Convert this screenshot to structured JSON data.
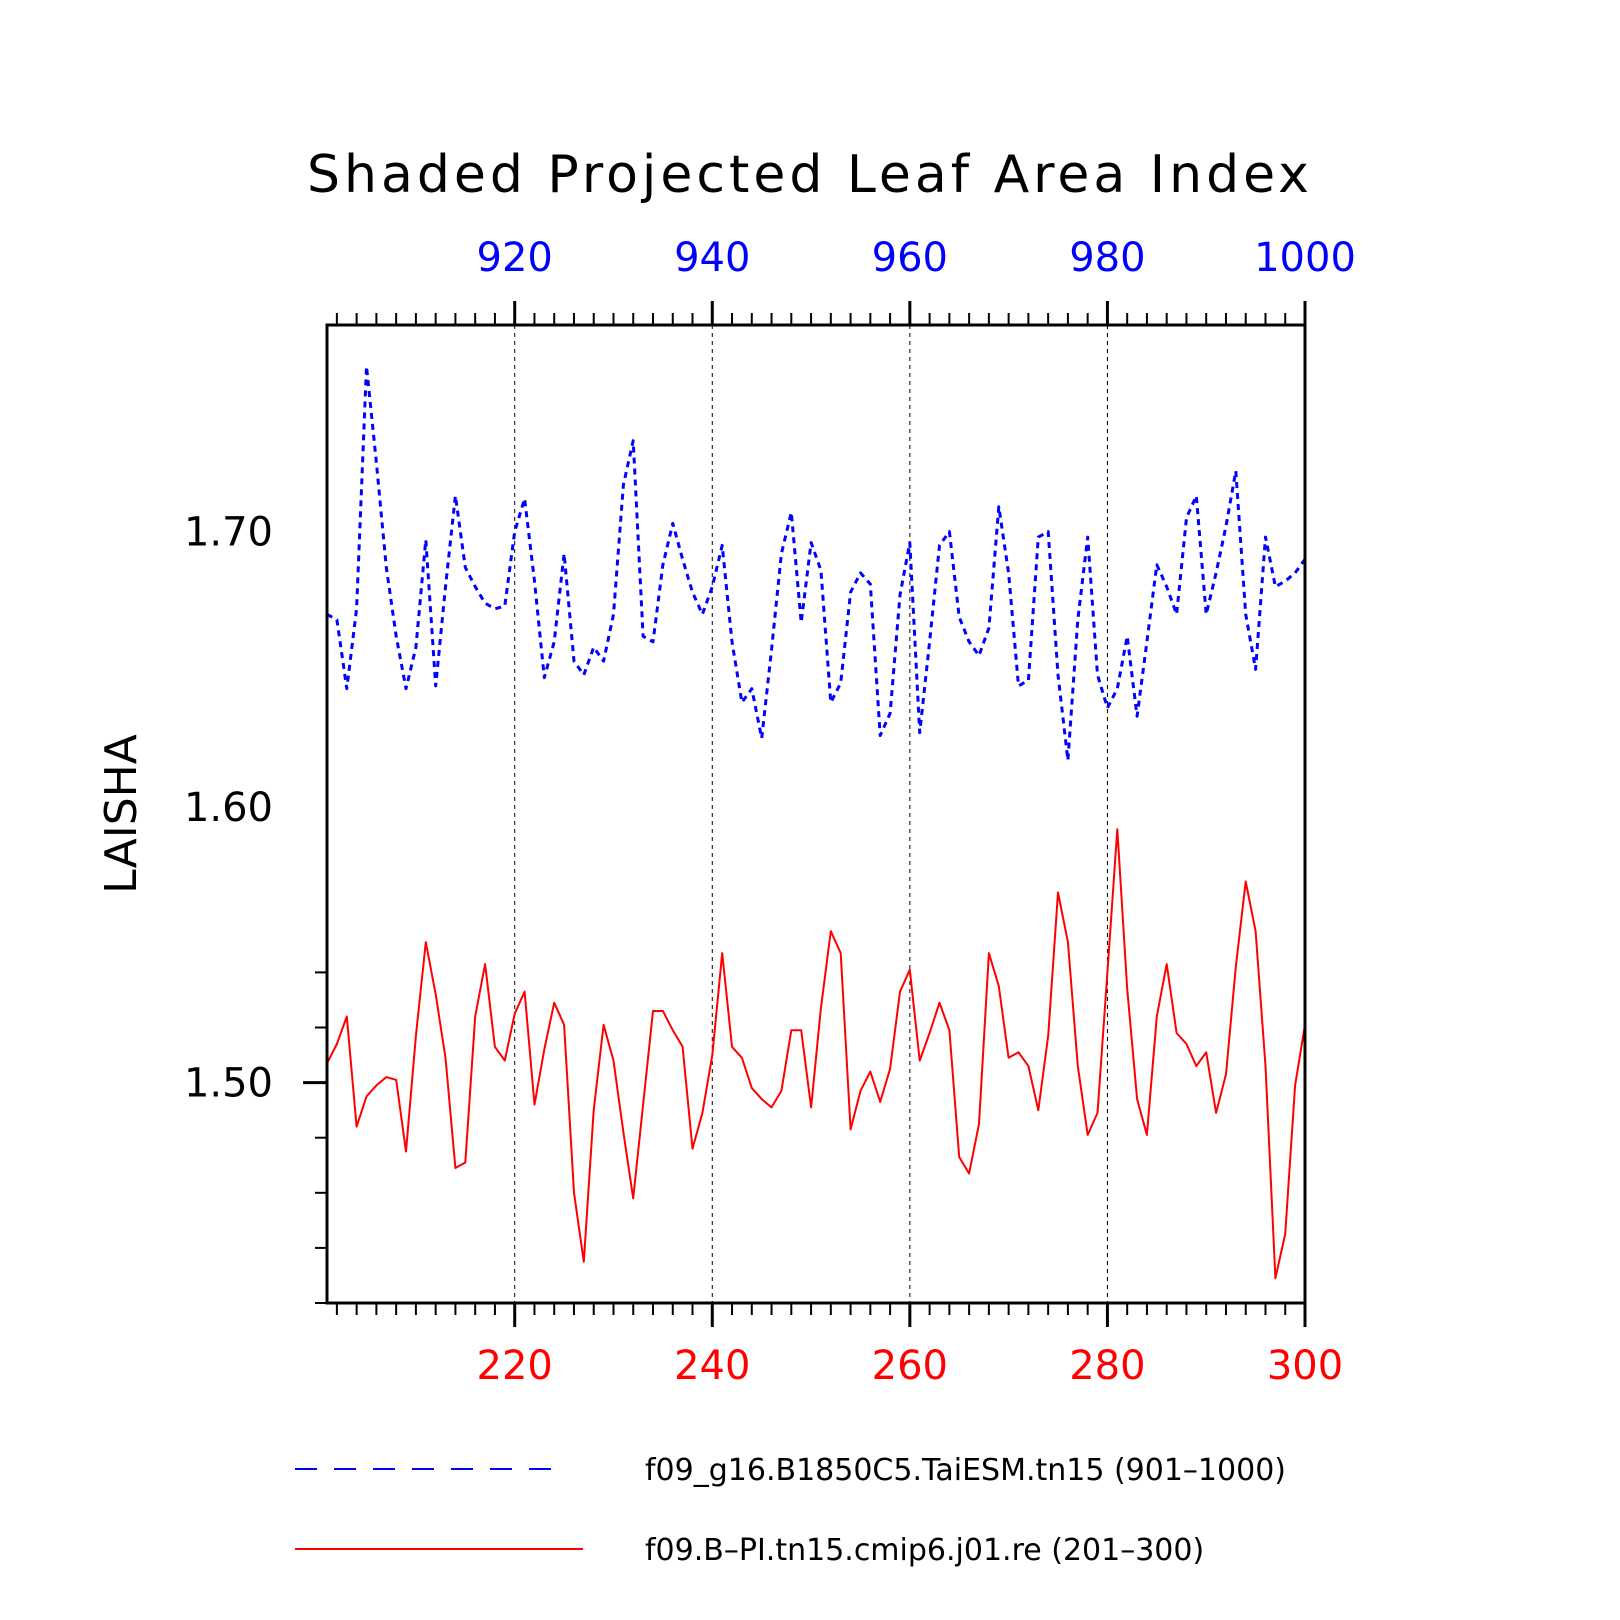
{
  "chart_data": {
    "type": "line",
    "title": "Shaded Projected Leaf Area Index",
    "ylabel": "LAISHA",
    "ylim": [
      1.42,
      1.775
    ],
    "yticks": [
      1.5,
      1.6,
      1.7
    ],
    "ytick_labels": [
      "1.50",
      "1.60",
      "1.70"
    ],
    "grid": "vertical dashed at major x ticks",
    "legend_position": "bottom",
    "x_bottom": {
      "range": [
        201,
        300
      ],
      "ticks": [
        220,
        240,
        260,
        280,
        300
      ],
      "tick_labels": [
        "220",
        "240",
        "260",
        "280",
        "300"
      ],
      "color": "#ff0000"
    },
    "x_top": {
      "range": [
        901,
        1000
      ],
      "ticks": [
        920,
        940,
        960,
        980,
        1000
      ],
      "tick_labels": [
        "920",
        "940",
        "960",
        "980",
        "1000"
      ],
      "color": "#0000ff"
    },
    "series": [
      {
        "name": "f09_g16.B1850C5.TaiESM.tn15 (901–1000)",
        "axis": "top",
        "color": "#0000ff",
        "style": "dashed",
        "x_start": 901,
        "values": [
          1.67,
          1.668,
          1.643,
          1.672,
          1.76,
          1.725,
          1.687,
          1.662,
          1.643,
          1.658,
          1.697,
          1.644,
          1.68,
          1.713,
          1.687,
          1.68,
          1.674,
          1.672,
          1.673,
          1.7,
          1.712,
          1.682,
          1.647,
          1.66,
          1.692,
          1.653,
          1.648,
          1.658,
          1.653,
          1.67,
          1.717,
          1.733,
          1.662,
          1.66,
          1.688,
          1.703,
          1.69,
          1.678,
          1.67,
          1.68,
          1.695,
          1.66,
          1.638,
          1.643,
          1.625,
          1.657,
          1.692,
          1.707,
          1.667,
          1.696,
          1.686,
          1.638,
          1.645,
          1.678,
          1.685,
          1.681,
          1.626,
          1.634,
          1.677,
          1.696,
          1.627,
          1.66,
          1.695,
          1.7,
          1.669,
          1.66,
          1.655,
          1.665,
          1.709,
          1.685,
          1.644,
          1.646,
          1.698,
          1.7,
          1.648,
          1.617,
          1.668,
          1.698,
          1.648,
          1.636,
          1.643,
          1.662,
          1.633,
          1.66,
          1.688,
          1.68,
          1.67,
          1.705,
          1.713,
          1.67,
          1.685,
          1.702,
          1.722,
          1.67,
          1.65,
          1.698,
          1.68,
          1.682,
          1.685,
          1.69
        ]
      },
      {
        "name": "f09.B–PI.tn15.cmip6.j01.re (201–300)",
        "axis": "bottom",
        "color": "#ff0000",
        "style": "solid",
        "x_start": 201,
        "values": [
          1.507,
          1.514,
          1.524,
          1.484,
          1.495,
          1.499,
          1.502,
          1.501,
          1.475,
          1.517,
          1.551,
          1.532,
          1.509,
          1.469,
          1.471,
          1.524,
          1.543,
          1.513,
          1.508,
          1.525,
          1.533,
          1.492,
          1.512,
          1.529,
          1.521,
          1.46,
          1.435,
          1.49,
          1.521,
          1.508,
          1.482,
          1.458,
          1.492,
          1.526,
          1.526,
          1.519,
          1.513,
          1.476,
          1.489,
          1.51,
          1.547,
          1.513,
          1.509,
          1.498,
          1.494,
          1.491,
          1.497,
          1.519,
          1.519,
          1.491,
          1.527,
          1.555,
          1.547,
          1.483,
          1.497,
          1.504,
          1.493,
          1.505,
          1.533,
          1.541,
          1.508,
          1.518,
          1.529,
          1.519,
          1.473,
          1.467,
          1.485,
          1.547,
          1.535,
          1.509,
          1.511,
          1.506,
          1.49,
          1.517,
          1.569,
          1.551,
          1.506,
          1.481,
          1.489,
          1.54,
          1.592,
          1.534,
          1.494,
          1.481,
          1.524,
          1.543,
          1.518,
          1.514,
          1.506,
          1.511,
          1.489,
          1.503,
          1.542,
          1.573,
          1.555,
          1.506,
          1.429,
          1.445,
          1.499,
          1.521
        ]
      }
    ]
  }
}
